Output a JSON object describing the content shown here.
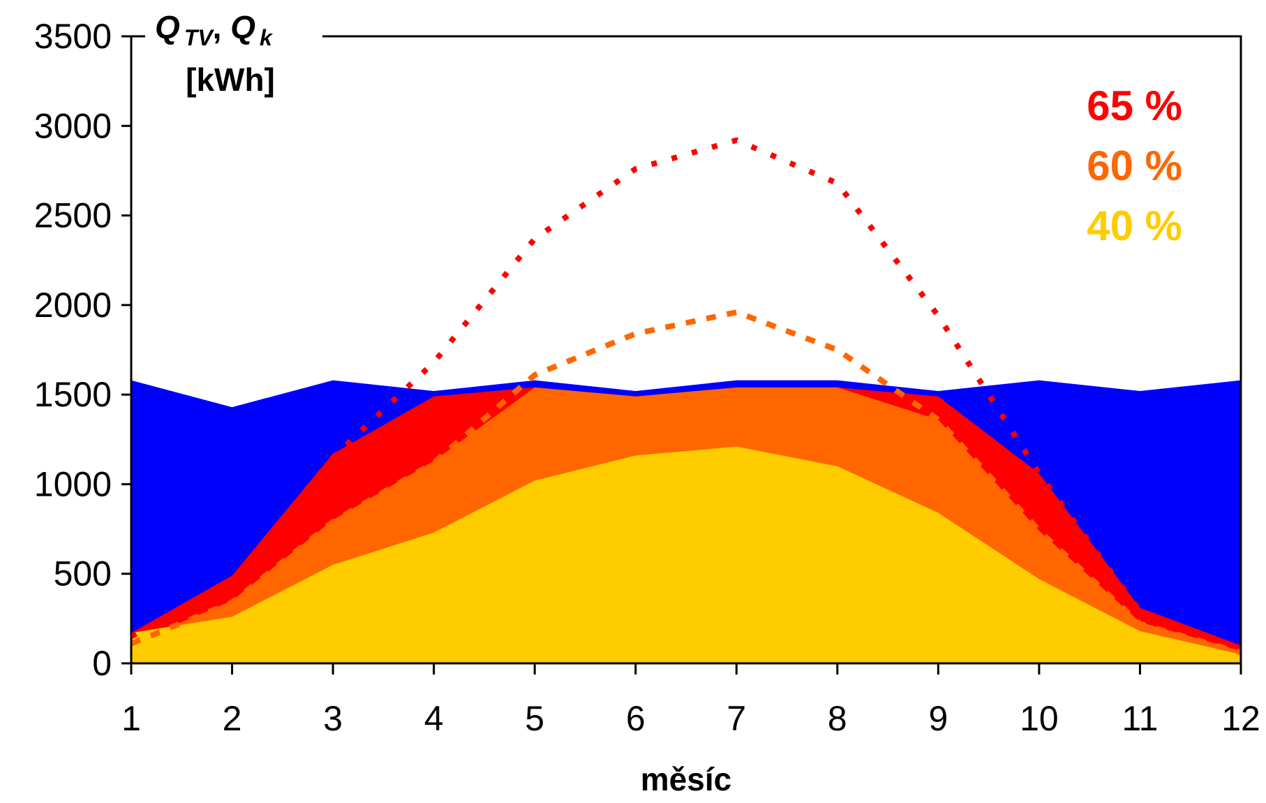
{
  "chart_data": {
    "type": "area",
    "title": "",
    "xlabel": "měsíc",
    "ylabel": {
      "q1": "Q",
      "sub1": "TV",
      "sep": ", ",
      "q2": "Q",
      "sub2": "k",
      "unit": "[kWh]"
    },
    "x": [
      1,
      2,
      3,
      4,
      5,
      6,
      7,
      8,
      9,
      10,
      11,
      12
    ],
    "xlim": [
      1,
      12
    ],
    "ylim": [
      0,
      3500
    ],
    "yticks": [
      0,
      500,
      1000,
      1500,
      2000,
      2500,
      3000,
      3500
    ],
    "grid": false,
    "legend_position": "top-right",
    "legend": [
      {
        "label": "65 %",
        "color": "#ff0000"
      },
      {
        "label": "60 %",
        "color": "#ff6600"
      },
      {
        "label": "40 %",
        "color": "#ffcc00"
      }
    ],
    "areas": [
      {
        "id": "demand",
        "color": "#0000ff",
        "values": [
          1580,
          1430,
          1580,
          1520,
          1580,
          1520,
          1580,
          1580,
          1520,
          1580,
          1520,
          1580
        ]
      },
      {
        "id": "65",
        "color": "#ff0000",
        "values": [
          170,
          490,
          1170,
          1490,
          1540,
          1490,
          1540,
          1540,
          1490,
          1060,
          310,
          100
        ]
      },
      {
        "id": "60",
        "color": "#ff6600",
        "values": [
          110,
          350,
          800,
          1130,
          1540,
          1490,
          1540,
          1540,
          1360,
          740,
          230,
          70
        ]
      },
      {
        "id": "40",
        "color": "#ffcc00",
        "values": [
          170,
          260,
          550,
          730,
          1020,
          1160,
          1210,
          1100,
          840,
          470,
          180,
          50
        ]
      }
    ],
    "lines": [
      {
        "id": "65",
        "color": "#ff0000",
        "style": "dotted",
        "values": [
          150,
          460,
          1150,
          1680,
          2370,
          2760,
          2920,
          2680,
          1940,
          1060,
          290,
          80
        ]
      },
      {
        "id": "60",
        "color": "#ff6600",
        "style": "dashed",
        "values": [
          110,
          340,
          790,
          1120,
          1610,
          1840,
          1960,
          1750,
          1360,
          740,
          220,
          60
        ]
      }
    ]
  }
}
